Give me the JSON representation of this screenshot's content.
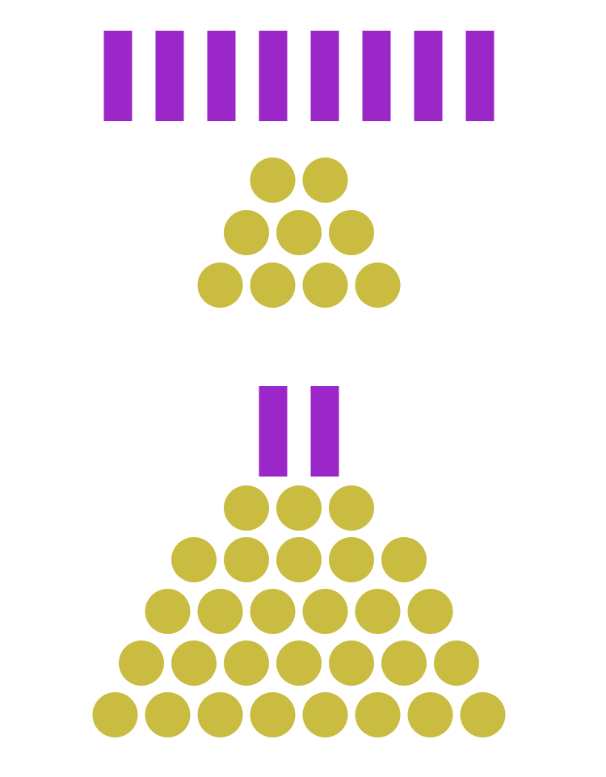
{
  "colors": {
    "background": "#ffffff",
    "bar": "#9b27c9",
    "counter": "#c9bc41"
  },
  "groups": [
    {
      "bar_count": 8,
      "counter_rows": [
        2,
        3,
        4
      ]
    },
    {
      "bar_count": 2,
      "counter_rows": [
        3,
        5,
        6,
        7,
        8
      ]
    }
  ]
}
